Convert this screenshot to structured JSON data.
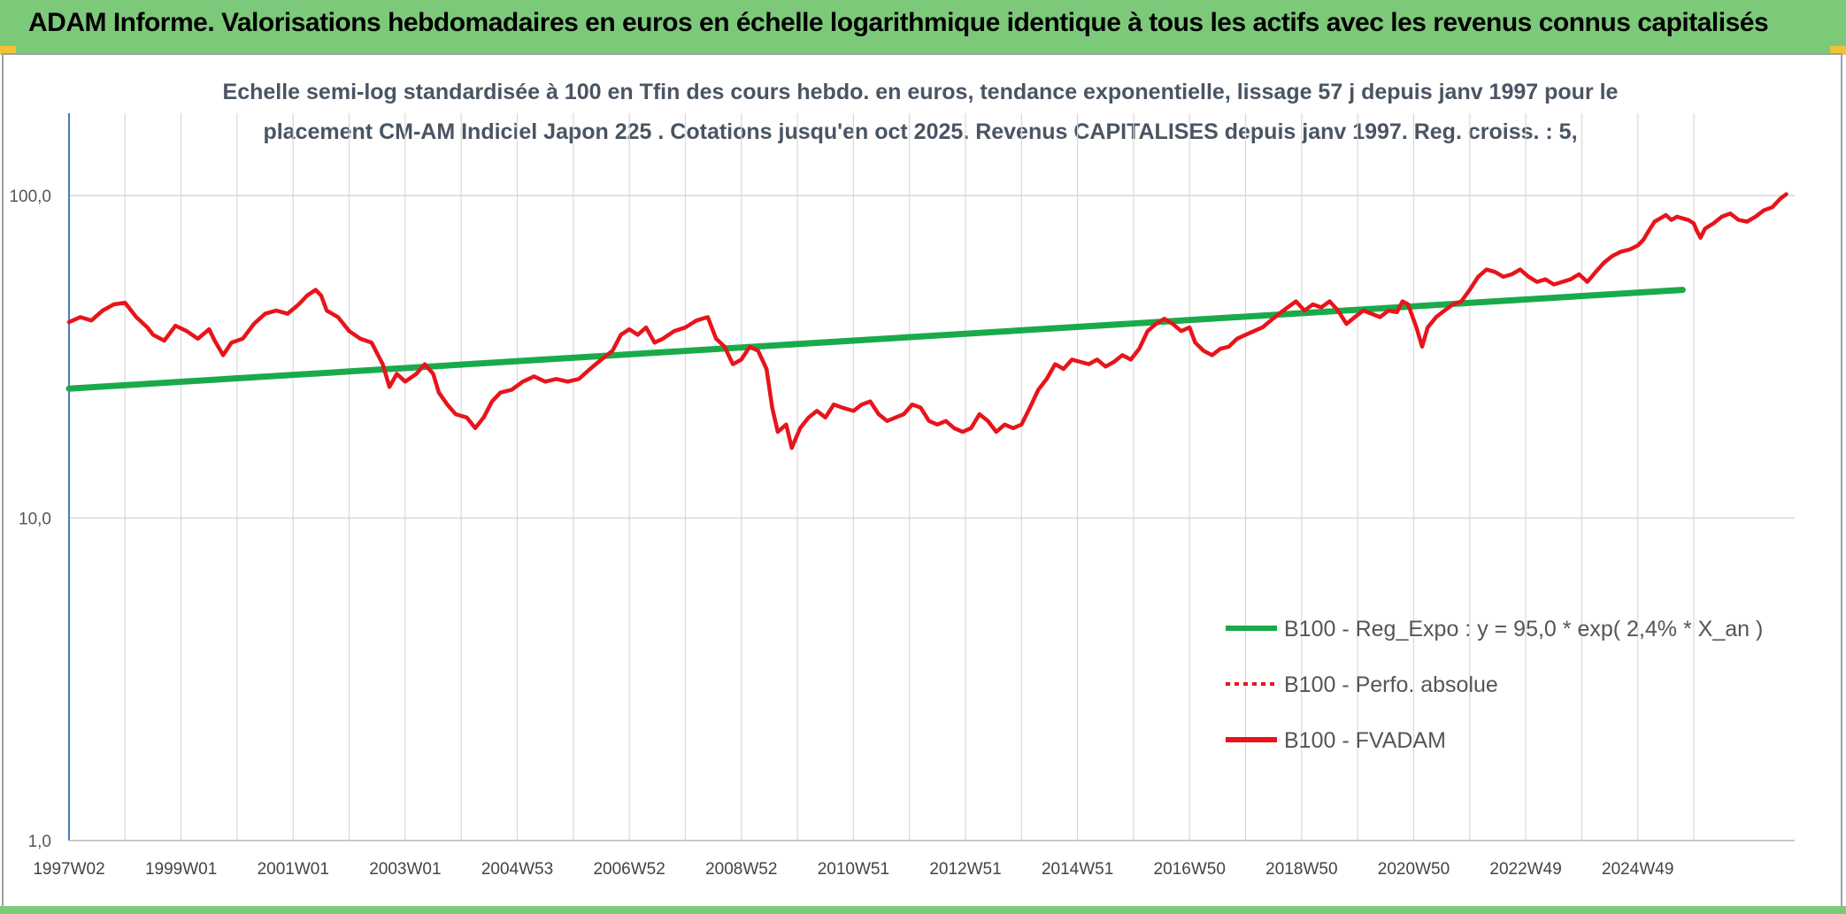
{
  "header": {
    "title": "ADAM Informe. Valorisations hebdomadaires en euros en échelle logarithmique identique à tous les actifs avec les revenus connus capitalisés"
  },
  "colors": {
    "banner": "#7dc97a",
    "trend": "#1aaa4a",
    "fvadam": "#e8141b",
    "perfo": "#e8141b",
    "grid": "#d9d9d9"
  },
  "chart_data": {
    "type": "line",
    "subtitle_line1": "Echelle semi-log standardisée à 100 en Tfin des cours hebdo. en euros, tendance exponentielle, lissage 57 j depuis janv 1997 pour le",
    "subtitle_line2": "placement CM-AM Indiciel Japon 225 . Cotations jusqu'en oct 2025. Revenus CAPITALISES depuis janv 1997. Reg. croiss. : 5,",
    "y_scale": "log",
    "ylim": [
      1,
      180
    ],
    "y_ticks": [
      {
        "value": 1,
        "label": "1,0"
      },
      {
        "value": 10,
        "label": "10,0"
      },
      {
        "value": 100,
        "label": "100,0"
      }
    ],
    "x_start": 1997.0,
    "x_end": 2025.8,
    "x_ticks": [
      {
        "value": 1997.0,
        "label": "1997W02"
      },
      {
        "value": 1999.0,
        "label": "1999W01"
      },
      {
        "value": 2001.0,
        "label": "2001W01"
      },
      {
        "value": 2003.0,
        "label": "2003W01"
      },
      {
        "value": 2005.0,
        "label": "2004W53"
      },
      {
        "value": 2007.0,
        "label": "2006W52"
      },
      {
        "value": 2009.0,
        "label": "2008W52"
      },
      {
        "value": 2011.0,
        "label": "2010W51"
      },
      {
        "value": 2013.0,
        "label": "2012W51"
      },
      {
        "value": 2015.0,
        "label": "2014W51"
      },
      {
        "value": 2017.0,
        "label": "2016W50"
      },
      {
        "value": 2019.0,
        "label": "2018W50"
      },
      {
        "value": 2021.0,
        "label": "2020W50"
      },
      {
        "value": 2023.0,
        "label": "2022W49"
      },
      {
        "value": 2025.0,
        "label": "2024W49"
      }
    ],
    "grid": true,
    "legend_position": "bottom-right",
    "series": [
      {
        "name": "B100 - Reg_Expo : y = 95,0 * exp( 2,4% *  X_an )",
        "style": "solid",
        "color": "#1aaa4a",
        "points": [
          [
            1997.0,
            25.2
          ],
          [
            2025.8,
            51.0
          ]
        ]
      },
      {
        "name": "B100 - Perfo. absolue",
        "style": "dotted",
        "color": "#e8141b",
        "points": []
      },
      {
        "name": "B100 - FVADAM",
        "style": "solid",
        "color": "#e8141b",
        "points": [
          [
            1997.0,
            40.5
          ],
          [
            1997.2,
            42
          ],
          [
            1997.4,
            41
          ],
          [
            1997.6,
            44
          ],
          [
            1997.8,
            46
          ],
          [
            1998.0,
            46.5
          ],
          [
            1998.2,
            42
          ],
          [
            1998.4,
            39
          ],
          [
            1998.5,
            37
          ],
          [
            1998.7,
            35.5
          ],
          [
            1998.9,
            39.5
          ],
          [
            1999.1,
            38
          ],
          [
            1999.3,
            36
          ],
          [
            1999.5,
            38.5
          ],
          [
            1999.6,
            35.5
          ],
          [
            1999.75,
            32
          ],
          [
            1999.9,
            35
          ],
          [
            2000.1,
            36
          ],
          [
            2000.3,
            40
          ],
          [
            2000.5,
            43
          ],
          [
            2000.7,
            44
          ],
          [
            2000.9,
            43
          ],
          [
            2001.1,
            46
          ],
          [
            2001.25,
            49
          ],
          [
            2001.4,
            51
          ],
          [
            2001.5,
            49
          ],
          [
            2001.6,
            44
          ],
          [
            2001.8,
            42
          ],
          [
            2002.0,
            38
          ],
          [
            2002.2,
            36
          ],
          [
            2002.4,
            35
          ],
          [
            2002.6,
            30
          ],
          [
            2002.72,
            25.5
          ],
          [
            2002.85,
            28
          ],
          [
            2003.0,
            26.5
          ],
          [
            2003.2,
            28
          ],
          [
            2003.35,
            30
          ],
          [
            2003.5,
            28
          ],
          [
            2003.6,
            24.5
          ],
          [
            2003.75,
            22.5
          ],
          [
            2003.9,
            21
          ],
          [
            2004.1,
            20.5
          ],
          [
            2004.25,
            19
          ],
          [
            2004.4,
            20.5
          ],
          [
            2004.55,
            23
          ],
          [
            2004.7,
            24.5
          ],
          [
            2004.9,
            25
          ],
          [
            2005.1,
            26.5
          ],
          [
            2005.3,
            27.5
          ],
          [
            2005.5,
            26.5
          ],
          [
            2005.7,
            27
          ],
          [
            2005.9,
            26.5
          ],
          [
            2006.1,
            27
          ],
          [
            2006.3,
            29
          ],
          [
            2006.5,
            31
          ],
          [
            2006.7,
            33
          ],
          [
            2006.85,
            37
          ],
          [
            2007.0,
            38.5
          ],
          [
            2007.15,
            37
          ],
          [
            2007.3,
            39
          ],
          [
            2007.45,
            35
          ],
          [
            2007.6,
            36
          ],
          [
            2007.8,
            38
          ],
          [
            2008.0,
            39
          ],
          [
            2008.2,
            41
          ],
          [
            2008.4,
            42
          ],
          [
            2008.55,
            36
          ],
          [
            2008.7,
            34
          ],
          [
            2008.85,
            30
          ],
          [
            2009.0,
            31
          ],
          [
            2009.15,
            34
          ],
          [
            2009.3,
            33
          ],
          [
            2009.45,
            29
          ],
          [
            2009.55,
            22
          ],
          [
            2009.65,
            18.5
          ],
          [
            2009.8,
            19.5
          ],
          [
            2009.9,
            16.5
          ],
          [
            2010.05,
            19
          ],
          [
            2010.2,
            20.5
          ],
          [
            2010.35,
            21.5
          ],
          [
            2010.5,
            20.5
          ],
          [
            2010.65,
            22.5
          ],
          [
            2010.8,
            22
          ],
          [
            2011.0,
            21.5
          ],
          [
            2011.15,
            22.5
          ],
          [
            2011.3,
            23
          ],
          [
            2011.45,
            21
          ],
          [
            2011.6,
            20
          ],
          [
            2011.75,
            20.5
          ],
          [
            2011.9,
            21
          ],
          [
            2012.05,
            22.5
          ],
          [
            2012.2,
            22
          ],
          [
            2012.35,
            20
          ],
          [
            2012.5,
            19.5
          ],
          [
            2012.65,
            20
          ],
          [
            2012.8,
            19
          ],
          [
            2012.95,
            18.5
          ],
          [
            2013.1,
            19
          ],
          [
            2013.25,
            21
          ],
          [
            2013.4,
            20
          ],
          [
            2013.55,
            18.5
          ],
          [
            2013.7,
            19.5
          ],
          [
            2013.85,
            19
          ],
          [
            2014.0,
            19.5
          ],
          [
            2014.15,
            22
          ],
          [
            2014.3,
            25
          ],
          [
            2014.45,
            27
          ],
          [
            2014.6,
            30
          ],
          [
            2014.75,
            29
          ],
          [
            2014.9,
            31
          ],
          [
            2015.05,
            30.5
          ],
          [
            2015.2,
            30
          ],
          [
            2015.35,
            31
          ],
          [
            2015.5,
            29.5
          ],
          [
            2015.65,
            30.5
          ],
          [
            2015.8,
            32
          ],
          [
            2015.95,
            31
          ],
          [
            2016.1,
            33.5
          ],
          [
            2016.25,
            38
          ],
          [
            2016.4,
            40
          ],
          [
            2016.55,
            41.5
          ],
          [
            2016.7,
            40
          ],
          [
            2016.85,
            38
          ],
          [
            2017.0,
            39
          ],
          [
            2017.1,
            35
          ],
          [
            2017.25,
            33
          ],
          [
            2017.4,
            32
          ],
          [
            2017.55,
            33.5
          ],
          [
            2017.7,
            34
          ],
          [
            2017.85,
            36
          ],
          [
            2018.0,
            37
          ],
          [
            2018.15,
            38
          ],
          [
            2018.3,
            39
          ],
          [
            2018.45,
            41
          ],
          [
            2018.6,
            43
          ],
          [
            2018.75,
            45
          ],
          [
            2018.9,
            47
          ],
          [
            2019.05,
            44
          ],
          [
            2019.2,
            46
          ],
          [
            2019.35,
            45
          ],
          [
            2019.5,
            47
          ],
          [
            2019.65,
            44
          ],
          [
            2019.8,
            40
          ],
          [
            2019.95,
            42
          ],
          [
            2020.1,
            44
          ],
          [
            2020.25,
            43
          ],
          [
            2020.4,
            42
          ],
          [
            2020.55,
            44
          ],
          [
            2020.7,
            43.5
          ],
          [
            2020.8,
            47
          ],
          [
            2020.9,
            46
          ],
          [
            2021.05,
            39
          ],
          [
            2021.15,
            34
          ],
          [
            2021.25,
            39
          ],
          [
            2021.4,
            42
          ],
          [
            2021.55,
            44
          ],
          [
            2021.7,
            46
          ],
          [
            2021.85,
            47
          ],
          [
            2022.0,
            51
          ],
          [
            2022.15,
            56
          ],
          [
            2022.3,
            59
          ],
          [
            2022.45,
            58
          ],
          [
            2022.6,
            56
          ],
          [
            2022.75,
            57
          ],
          [
            2022.9,
            59
          ],
          [
            2023.05,
            56
          ],
          [
            2023.2,
            54
          ],
          [
            2023.35,
            55
          ],
          [
            2023.5,
            53
          ],
          [
            2023.65,
            54
          ],
          [
            2023.8,
            55
          ],
          [
            2023.95,
            57
          ],
          [
            2024.1,
            54
          ],
          [
            2024.25,
            58
          ],
          [
            2024.4,
            62
          ],
          [
            2024.55,
            65
          ],
          [
            2024.7,
            67
          ],
          [
            2024.85,
            68
          ],
          [
            2025.0,
            70
          ],
          [
            2025.1,
            73
          ],
          [
            2025.2,
            78
          ],
          [
            2025.3,
            83
          ],
          [
            2025.4,
            85
          ],
          [
            2025.5,
            87
          ],
          [
            2025.6,
            84
          ],
          [
            2025.7,
            86
          ],
          [
            2025.8,
            85
          ],
          [
            2025.9,
            84
          ],
          [
            2026.0,
            82
          ],
          [
            2026.05,
            78
          ],
          [
            2026.12,
            74
          ],
          [
            2026.2,
            79
          ],
          [
            2026.35,
            82
          ],
          [
            2026.5,
            86
          ],
          [
            2026.65,
            88
          ],
          [
            2026.8,
            84
          ],
          [
            2026.95,
            83
          ],
          [
            2027.1,
            86
          ],
          [
            2027.25,
            90
          ],
          [
            2027.4,
            92
          ],
          [
            2027.55,
            98
          ],
          [
            2027.65,
            101
          ]
        ]
      }
    ]
  }
}
